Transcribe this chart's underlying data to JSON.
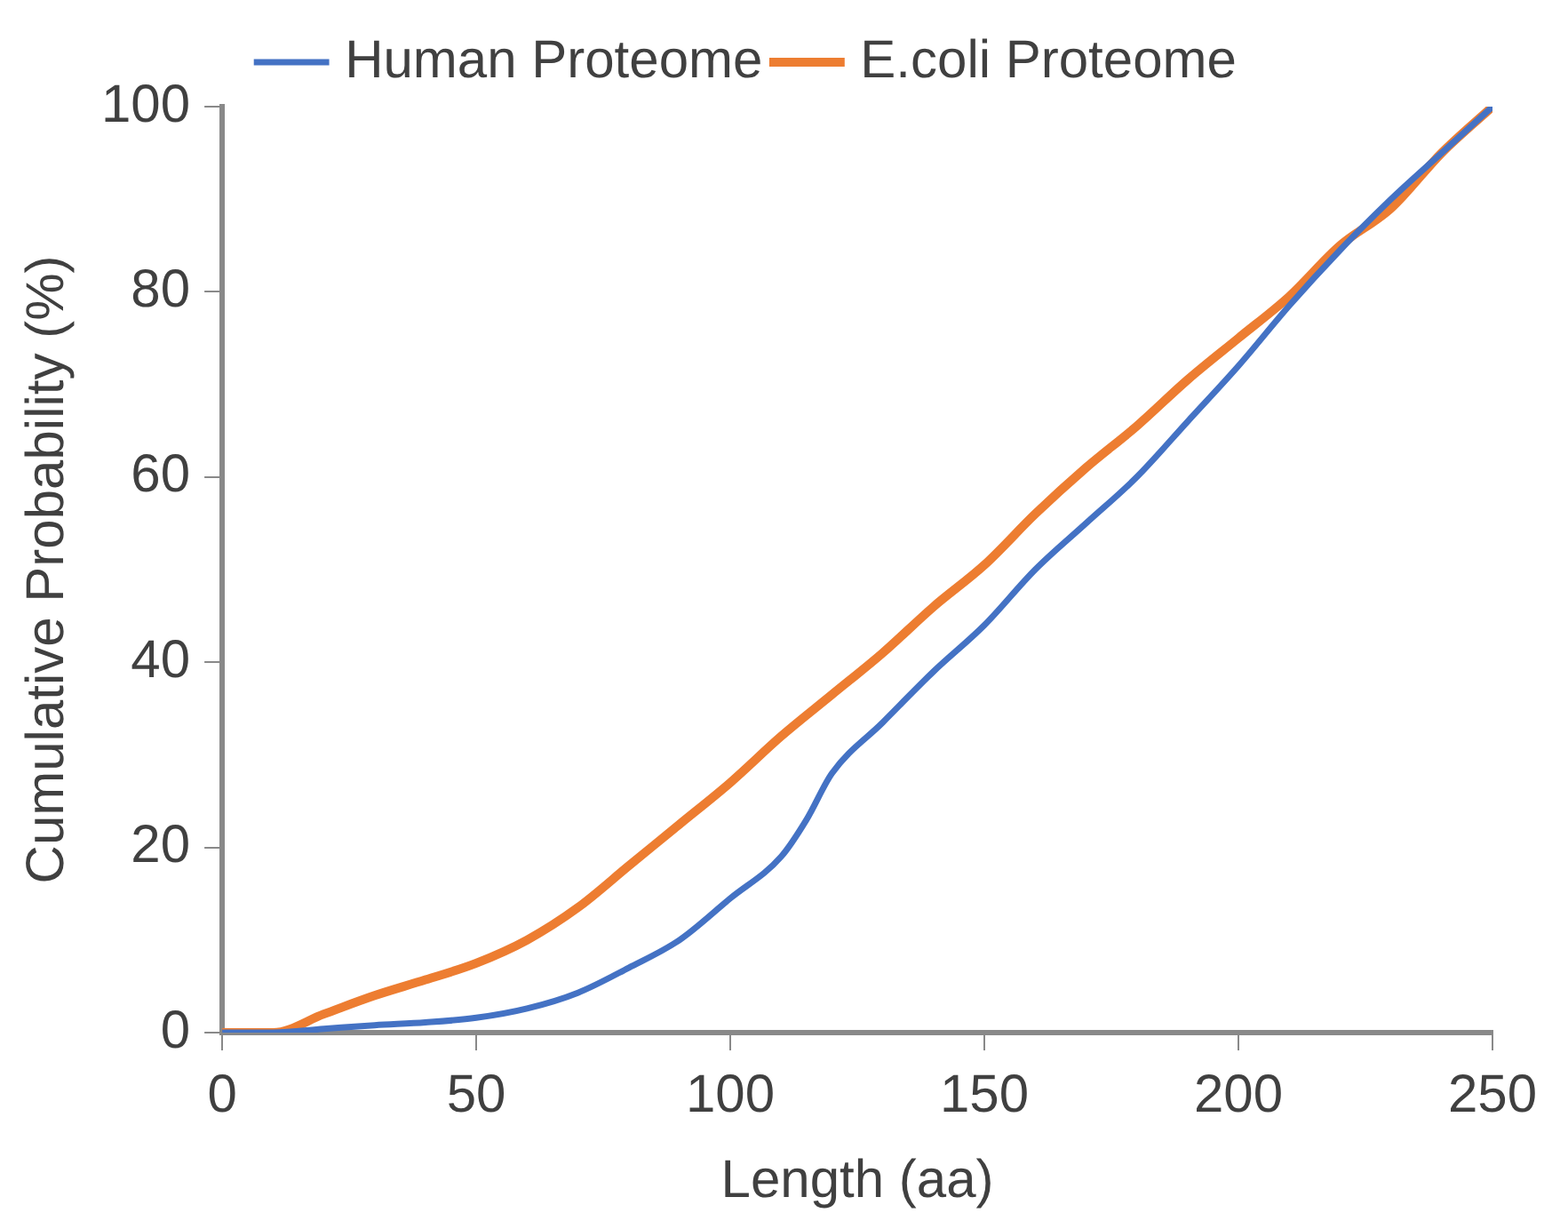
{
  "chart_data": {
    "type": "line",
    "xlabel": "Length (aa)",
    "ylabel": "Cumulative Probability (%)",
    "xlim": [
      0,
      250
    ],
    "xticks": [
      0,
      50,
      100,
      150,
      200,
      250
    ],
    "ylim": [
      0,
      100
    ],
    "yticks": [
      0,
      20,
      40,
      60,
      80,
      100
    ],
    "grid": false,
    "legend": "top",
    "marker": "none",
    "line_style": "solid",
    "series": [
      {
        "name": "Human Proteome",
        "color": "#4472c4",
        "x": [
          0,
          10,
          20,
          30,
          40,
          50,
          60,
          70,
          80,
          90,
          100,
          110,
          115,
          120,
          130,
          140,
          150,
          160,
          170,
          180,
          190,
          200,
          210,
          220,
          230,
          240,
          250
        ],
        "values": [
          0,
          0,
          0.4,
          0.8,
          1.1,
          1.6,
          2.6,
          4.3,
          7,
          10,
          14.5,
          19,
          23,
          28,
          33.5,
          39,
          44,
          50,
          55,
          60,
          66,
          72,
          78.5,
          84.5,
          90,
          95,
          100
        ]
      },
      {
        "name": "E.coli Proteome",
        "color": "#ed7d31",
        "x": [
          0,
          10,
          20,
          30,
          40,
          50,
          60,
          70,
          80,
          90,
          100,
          110,
          120,
          130,
          140,
          150,
          160,
          170,
          180,
          190,
          200,
          210,
          220,
          230,
          240,
          250
        ],
        "values": [
          0,
          0,
          2,
          4,
          5.7,
          7.5,
          10,
          13.5,
          18,
          22.5,
          27,
          32,
          36.5,
          41,
          46,
          50.5,
          56,
          61,
          65.5,
          70.5,
          75,
          79.5,
          85,
          89,
          95,
          100
        ]
      }
    ]
  }
}
